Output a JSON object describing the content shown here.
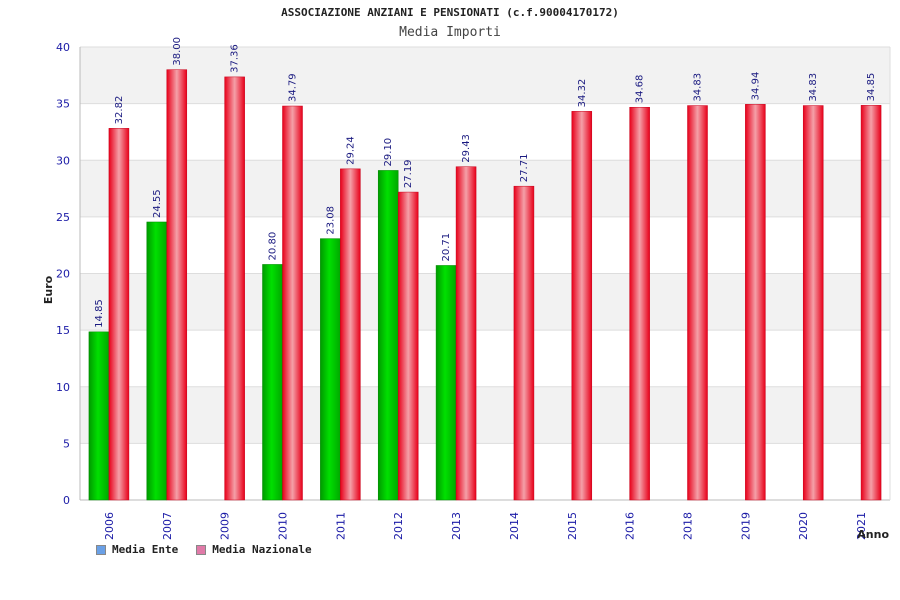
{
  "header": {
    "title": "ASSOCIAZIONE ANZIANI E PENSIONATI (c.f.90004170172)",
    "subtitle": "Media Importi"
  },
  "legend": [
    {
      "label": "Media Ente",
      "color": "#6aa0e6"
    },
    {
      "label": "Media Nazionale",
      "color": "#e07aa8"
    }
  ],
  "chart_data": {
    "type": "bar",
    "title": "Media Importi",
    "xlabel": "Anno",
    "ylabel": "Euro",
    "ylim": [
      0,
      40
    ],
    "yticks": [
      0,
      5,
      10,
      15,
      20,
      25,
      30,
      35,
      40
    ],
    "categories": [
      "2006",
      "2007",
      "2009",
      "2010",
      "2011",
      "2012",
      "2013",
      "2014",
      "2015",
      "2016",
      "2018",
      "2019",
      "2020",
      "2021"
    ],
    "series": [
      {
        "name": "Media Ente",
        "color": "#00c000",
        "values": [
          14.85,
          24.55,
          null,
          20.8,
          23.08,
          29.1,
          20.71,
          null,
          null,
          null,
          null,
          null,
          null,
          null
        ],
        "labels": [
          "14.85",
          "24.55",
          null,
          "20.80",
          "23.08",
          "29.10",
          "20.71",
          null,
          null,
          null,
          null,
          null,
          null,
          null
        ]
      },
      {
        "name": "Media Nazionale",
        "color": "#ee1c24",
        "values": [
          32.82,
          38.0,
          37.36,
          34.79,
          29.24,
          27.19,
          29.43,
          27.71,
          34.32,
          34.68,
          34.83,
          34.94,
          34.83,
          34.85
        ],
        "labels": [
          "32.82",
          "38.00",
          "37.36",
          "34.79",
          "29.24",
          "27.19",
          "29.43",
          "27.71",
          "34.32",
          "34.68",
          "34.83",
          "34.94",
          "34.83",
          "34.85"
        ]
      }
    ]
  }
}
